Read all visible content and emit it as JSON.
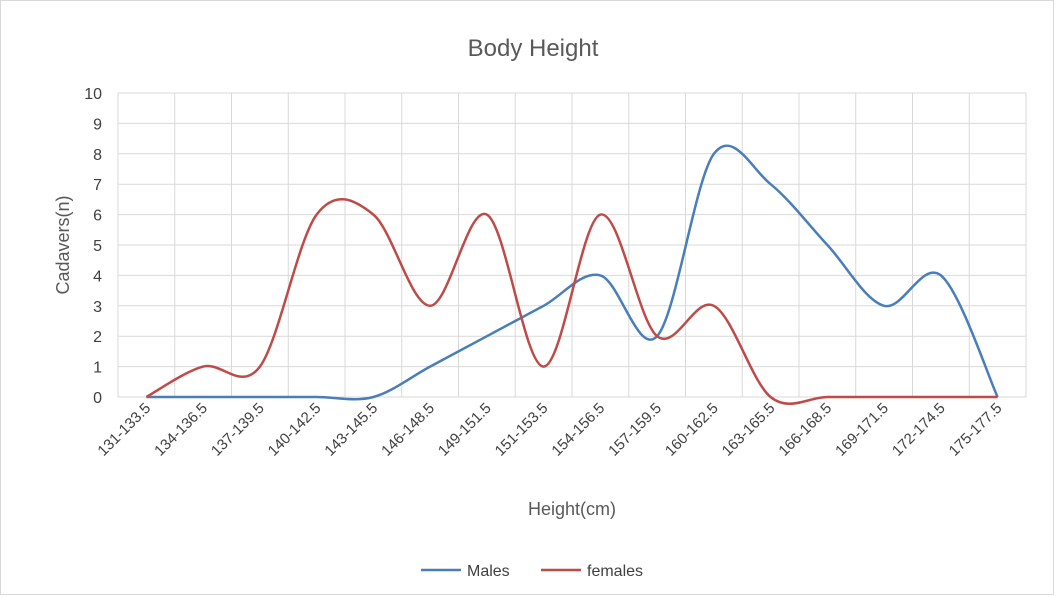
{
  "chart_data": {
    "type": "line",
    "title": "Body Height",
    "xlabel": "Height(cm)",
    "ylabel": "Cadavers(n)",
    "categories": [
      "131-133.5",
      "134-136.5",
      "137-139.5",
      "140-142.5",
      "143-145.5",
      "146-148.5",
      "149-151.5",
      "151-153.5",
      "154-156.5",
      "157-159.5",
      "160-162.5",
      "163-165.5",
      "166-168.5",
      "169-171.5",
      "172-174.5",
      "175-177.5"
    ],
    "ylim": [
      0,
      10
    ],
    "yticks": [
      "0",
      "1",
      "2",
      "3",
      "4",
      "5",
      "6",
      "7",
      "8",
      "9",
      "10"
    ],
    "grid": true,
    "smooth": true,
    "legend_position": "bottom",
    "series": [
      {
        "name": "Males",
        "color": "#4a7ebb",
        "values": [
          0,
          0,
          0,
          0,
          0,
          1,
          2,
          3,
          4,
          2,
          8,
          7,
          5,
          3,
          4,
          0
        ]
      },
      {
        "name": "females",
        "color": "#be4b48",
        "values": [
          0,
          1,
          1,
          6,
          6,
          3,
          6,
          1,
          6,
          2,
          3,
          0,
          0,
          0,
          0,
          0
        ]
      }
    ]
  }
}
